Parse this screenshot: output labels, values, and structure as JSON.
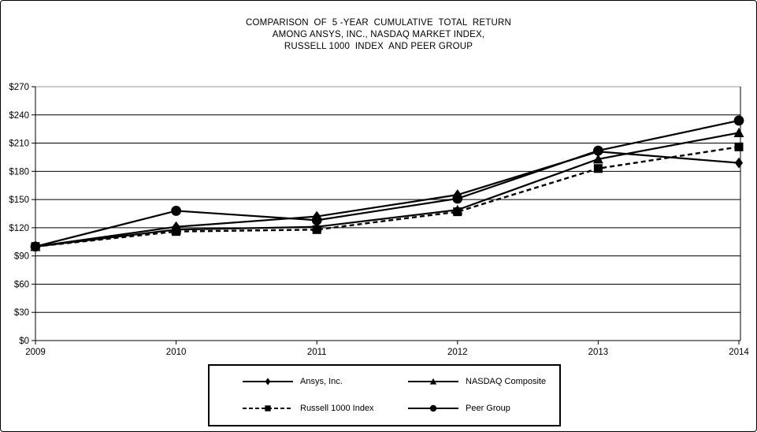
{
  "title": {
    "line1": "COMPARISON  OF  5 -YEAR  CUMULATIVE  TOTAL  RETURN",
    "line2": "AMONG ANSYS, INC., NASDAQ MARKET INDEX,",
    "line3": "RUSSELL 1000  INDEX  AND PEER GROUP"
  },
  "chart_data": {
    "type": "line",
    "x_labels": [
      "2009",
      "2010",
      "2011",
      "2012",
      "2013",
      "2014"
    ],
    "y_ticks": [
      0,
      30,
      60,
      90,
      120,
      150,
      180,
      210,
      240,
      270
    ],
    "y_tick_labels": [
      "$0",
      "$30",
      "$60",
      "$90",
      "$120",
      "$150",
      "$180",
      "$210",
      "$240",
      "$270"
    ],
    "ylim": [
      0,
      270
    ],
    "grid": true,
    "legend_position": "bottom",
    "series": [
      {
        "name": "Ansys, Inc.",
        "marker": "diamond",
        "line": "solid",
        "values": [
          100,
          121,
          132,
          155,
          201,
          189
        ]
      },
      {
        "name": "NASDAQ Composite",
        "marker": "triangle",
        "line": "solid",
        "values": [
          100,
          118,
          121,
          139,
          193,
          221
        ]
      },
      {
        "name": "Russell 1000 Index",
        "marker": "square",
        "line": "dashed",
        "values": [
          100,
          116,
          118,
          137,
          183,
          206
        ]
      },
      {
        "name": "Peer Group",
        "marker": "circle",
        "line": "solid",
        "values": [
          100,
          138,
          128,
          151,
          202,
          234
        ]
      }
    ],
    "colors": {
      "series": "#000000",
      "grid": "#000000",
      "top_gridline": "#9a9a9a",
      "background": "#ffffff"
    }
  }
}
